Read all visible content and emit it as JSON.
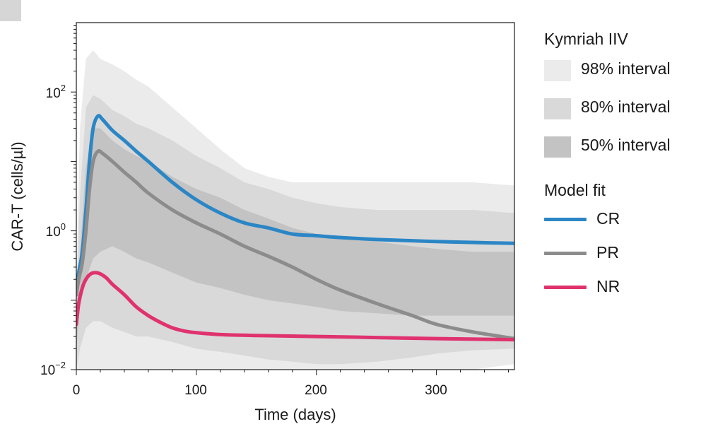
{
  "chart_data": {
    "type": "area",
    "xlabel": "Time (days)",
    "ylabel": "CAR-T (cells/µl)",
    "xlim": [
      0,
      365
    ],
    "ylim_log10": [
      -2,
      3
    ],
    "y_scale": "log",
    "x_ticks": [
      0,
      100,
      200,
      300
    ],
    "x_tick_labels": [
      "0",
      "100",
      "200",
      "300"
    ],
    "y_ticks": [
      {
        "base": "10",
        "exp": "−2",
        "log10": -2
      },
      {
        "base": "10",
        "exp": "0",
        "log10": 0
      },
      {
        "base": "10",
        "exp": "2",
        "log10": 2
      }
    ],
    "legend": {
      "iiv_title": "Kymriah IIV",
      "bands": [
        {
          "name": "98% interval",
          "color": "#ebebeb"
        },
        {
          "name": "80% interval",
          "color": "#d9d9d9"
        },
        {
          "name": "50% interval",
          "color": "#c3c3c3"
        }
      ],
      "fit_title": "Model fit",
      "lines": [
        {
          "name": "CR",
          "color": "#2b86c5"
        },
        {
          "name": "PR",
          "color": "#8c8c8c"
        },
        {
          "name": "NR",
          "color": "#e0326e"
        }
      ]
    },
    "bands": [
      {
        "name": "98% interval",
        "color": "#ebebeb",
        "x": [
          0,
          3,
          8,
          14,
          20,
          30,
          40,
          50,
          60,
          80,
          100,
          120,
          140,
          160,
          180,
          200,
          220,
          250,
          280,
          300,
          330,
          365
        ],
        "lower": [
          0.002,
          0.004,
          0.006,
          0.008,
          0.009,
          0.009,
          0.008,
          0.006,
          0.005,
          0.004,
          0.003,
          0.002,
          0.0018,
          0.0015,
          0.0015,
          0.002,
          0.003,
          0.004,
          0.006,
          0.008,
          0.01,
          0.012
        ],
        "upper": [
          0.2,
          30,
          300,
          400,
          300,
          250,
          200,
          150,
          120,
          60,
          30,
          15,
          8,
          6,
          5,
          5,
          5,
          5,
          5,
          5,
          5,
          4.5
        ]
      },
      {
        "name": "80% interval",
        "color": "#d9d9d9",
        "x": [
          0,
          3,
          8,
          14,
          20,
          30,
          40,
          50,
          60,
          80,
          100,
          120,
          140,
          160,
          180,
          200,
          220,
          250,
          280,
          300,
          330,
          365
        ],
        "lower": [
          0.01,
          0.02,
          0.04,
          0.05,
          0.05,
          0.04,
          0.035,
          0.03,
          0.03,
          0.025,
          0.02,
          0.018,
          0.016,
          0.014,
          0.013,
          0.012,
          0.012,
          0.013,
          0.015,
          0.017,
          0.019,
          0.02
        ],
        "upper": [
          0.1,
          3,
          60,
          90,
          80,
          55,
          45,
          35,
          30,
          20,
          12,
          8,
          5,
          4,
          3,
          2.5,
          2.2,
          2,
          2,
          2,
          2,
          1.8
        ]
      },
      {
        "name": "50% interval",
        "color": "#c3c3c3",
        "x": [
          0,
          3,
          8,
          14,
          20,
          30,
          40,
          50,
          60,
          80,
          100,
          120,
          140,
          160,
          180,
          200,
          220,
          250,
          280,
          300,
          330,
          365
        ],
        "lower": [
          0.02,
          0.08,
          0.2,
          0.4,
          0.5,
          0.6,
          0.5,
          0.4,
          0.35,
          0.25,
          0.18,
          0.15,
          0.12,
          0.1,
          0.09,
          0.08,
          0.07,
          0.065,
          0.06,
          0.06,
          0.06,
          0.06
        ],
        "upper": [
          0.06,
          0.5,
          8,
          30,
          30,
          20,
          15,
          12,
          10,
          6,
          4,
          3,
          2,
          1.5,
          1.1,
          0.9,
          0.8,
          0.7,
          0.6,
          0.55,
          0.5,
          0.5
        ]
      }
    ],
    "series": [
      {
        "name": "CR",
        "color": "#2b86c5",
        "x": [
          0,
          2,
          5,
          8,
          11,
          14,
          18,
          22,
          30,
          40,
          50,
          60,
          80,
          100,
          120,
          140,
          160,
          180,
          200,
          220,
          250,
          280,
          300,
          330,
          365
        ],
        "y": [
          0.12,
          0.25,
          0.5,
          2,
          10,
          30,
          45,
          40,
          28,
          20,
          14,
          10,
          5,
          2.8,
          1.8,
          1.3,
          1.1,
          0.9,
          0.85,
          0.8,
          0.75,
          0.72,
          0.7,
          0.68,
          0.66
        ]
      },
      {
        "name": "PR",
        "color": "#8c8c8c",
        "x": [
          0,
          2,
          5,
          8,
          11,
          14,
          18,
          22,
          30,
          40,
          50,
          60,
          80,
          100,
          120,
          140,
          160,
          180,
          200,
          220,
          250,
          280,
          300,
          330,
          365
        ],
        "y": [
          0.12,
          0.2,
          0.35,
          1,
          4,
          10,
          14,
          13,
          10,
          7,
          5,
          3.5,
          2,
          1.3,
          0.9,
          0.6,
          0.43,
          0.3,
          0.2,
          0.14,
          0.09,
          0.06,
          0.045,
          0.035,
          0.028
        ]
      },
      {
        "name": "NR",
        "color": "#e0326e",
        "x": [
          0,
          2,
          5,
          8,
          12,
          16,
          20,
          25,
          30,
          40,
          50,
          60,
          70,
          80,
          90,
          100,
          120,
          150,
          200,
          250,
          300,
          365
        ],
        "y": [
          0.045,
          0.09,
          0.15,
          0.2,
          0.24,
          0.25,
          0.24,
          0.21,
          0.17,
          0.12,
          0.08,
          0.06,
          0.048,
          0.04,
          0.036,
          0.034,
          0.032,
          0.031,
          0.03,
          0.029,
          0.028,
          0.027
        ]
      }
    ]
  }
}
